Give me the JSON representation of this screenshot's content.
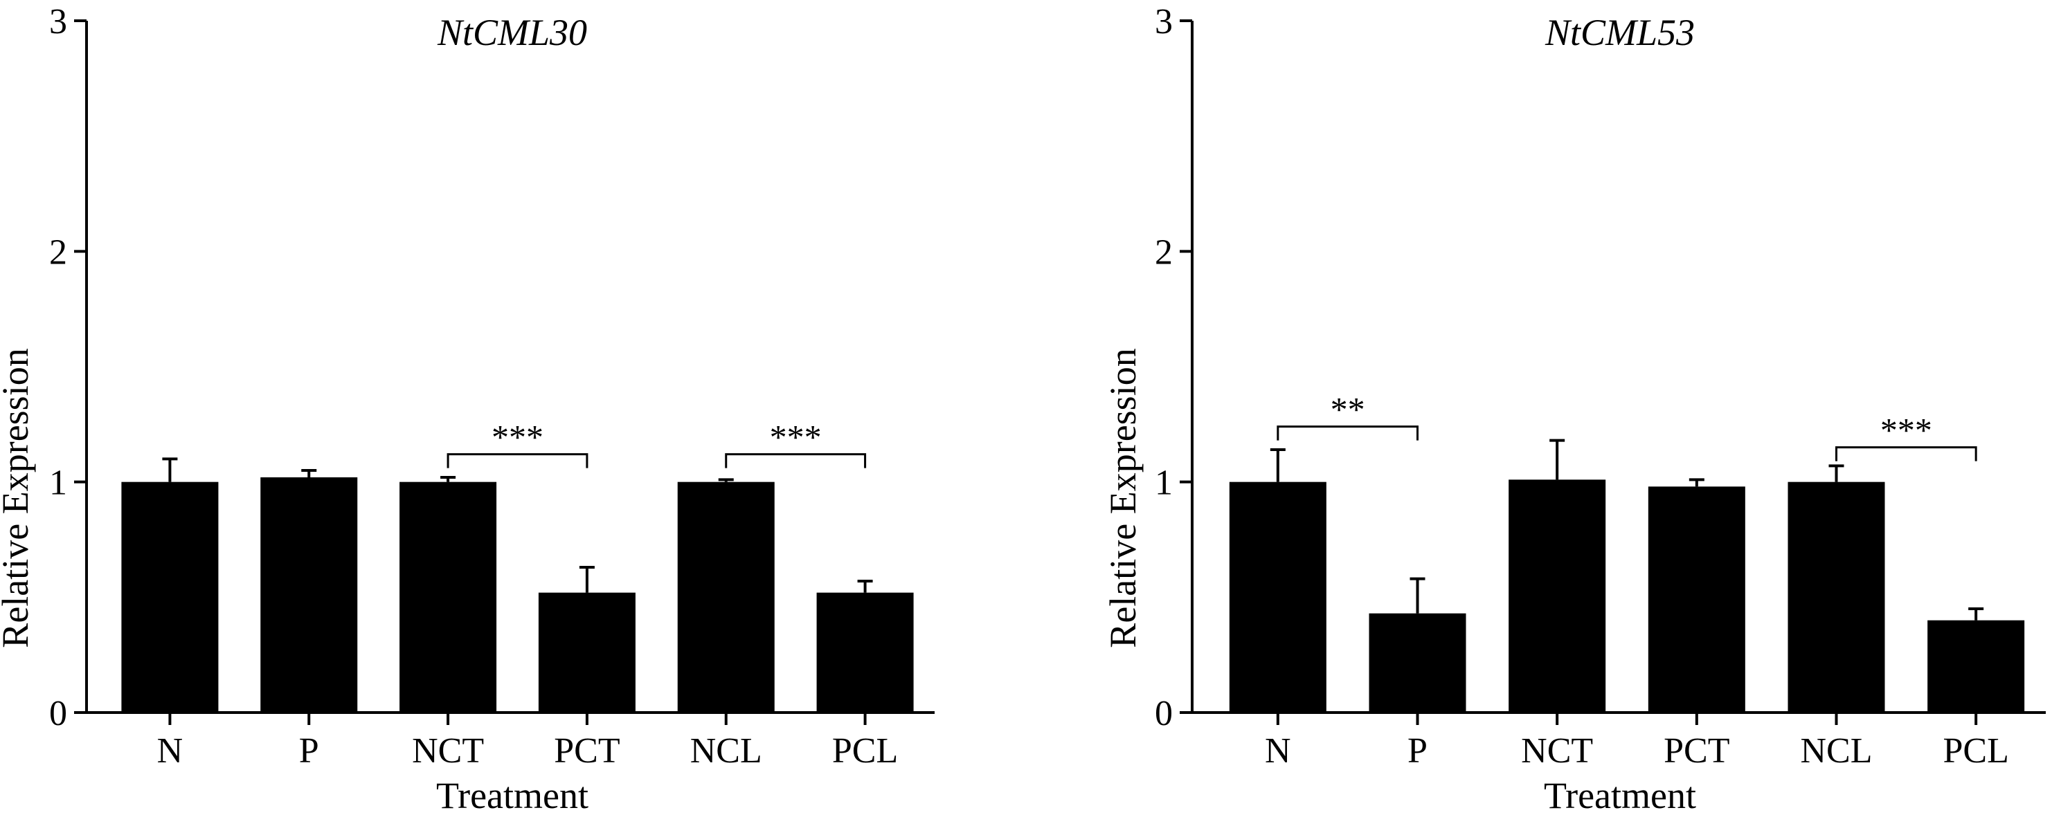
{
  "chart_data": [
    {
      "type": "bar",
      "title": "NtCML30",
      "xlabel": "Treatment",
      "ylabel": "Relative Expression",
      "ylim": [
        0,
        3
      ],
      "yticks": [
        "0",
        "1",
        "2",
        "3"
      ],
      "categories": [
        "N",
        "P",
        "NCT",
        "PCT",
        "NCL",
        "PCL"
      ],
      "values": [
        1.0,
        1.02,
        1.0,
        0.52,
        1.0,
        0.52
      ],
      "errors": [
        0.1,
        0.03,
        0.02,
        0.11,
        0.01,
        0.05
      ],
      "bar_color": "#000000",
      "significance": [
        {
          "from": 2,
          "to": 3,
          "label": "***",
          "level": 1.12
        },
        {
          "from": 4,
          "to": 5,
          "label": "***",
          "level": 1.12
        }
      ]
    },
    {
      "type": "bar",
      "title": "NtCML53",
      "xlabel": "Treatment",
      "ylabel": "Relative Expression",
      "ylim": [
        0,
        3
      ],
      "yticks": [
        "0",
        "1",
        "2",
        "3"
      ],
      "categories": [
        "N",
        "P",
        "NCT",
        "PCT",
        "NCL",
        "PCL"
      ],
      "values": [
        1.0,
        0.43,
        1.01,
        0.98,
        1.0,
        0.4
      ],
      "errors": [
        0.14,
        0.15,
        0.17,
        0.03,
        0.07,
        0.05
      ],
      "bar_color": "#000000",
      "significance": [
        {
          "from": 0,
          "to": 1,
          "label": "**",
          "level": 1.24
        },
        {
          "from": 4,
          "to": 5,
          "label": "***",
          "level": 1.15
        }
      ]
    }
  ]
}
